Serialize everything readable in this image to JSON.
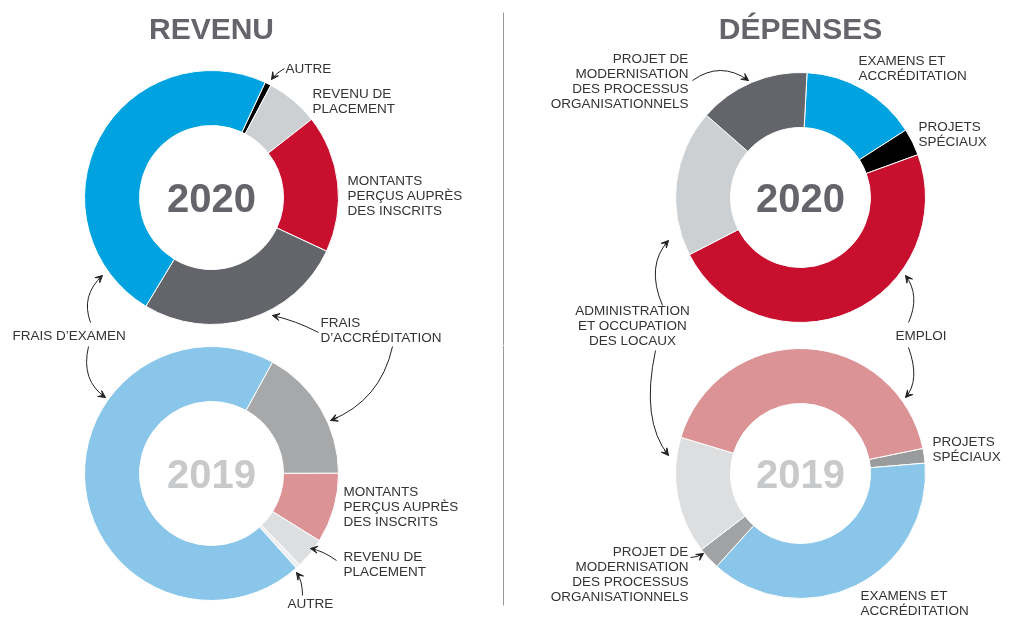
{
  "chart_data": [
    {
      "type": "donut",
      "title": "REVENU",
      "annotations": [
        "2020"
      ],
      "categories": [
        "AUTRE",
        "REVENU DE\nPLACEMENT",
        "MONTANTS\nPERÇUS AUPRÈS\nDES INSCRITS",
        "FRAIS\nD’ACCRÉDITATION",
        "FRAIS D’EXAMEN"
      ],
      "values": [
        0.8,
        6.7,
        17.5,
        26.7,
        48.3
      ],
      "colors": [
        "#000000",
        "#cdd0d3",
        "#c8102e",
        "#63656a",
        "#00a3e0"
      ]
    },
    {
      "type": "donut",
      "title": "DÉPENSES",
      "annotations": [
        "2020"
      ],
      "categories": [
        "EXAMENS ET\nACCRÉDITATION",
        "PROJETS\nSPÉCIAUX",
        "EMPLOI",
        "ADMINISTRATION\nET OCCUPATION\nDES LOCAUX",
        "PROJET DE\nMODERNISATION\nDES PROCESSUS\nORGANISATIONNELS"
      ],
      "values": [
        15.1,
        3.5,
        48.0,
        19.0,
        14.4
      ],
      "colors": [
        "#00a3e0",
        "#000000",
        "#c8102e",
        "#cdd0d3",
        "#63656a"
      ]
    },
    {
      "type": "donut",
      "annotations": [
        "2019"
      ],
      "categories": [
        null,
        "MONTANTS\nPERÇUS AUPRÈS\nDES INSCRITS",
        "REVENU DE\nPLACEMENT",
        "AUTRE",
        null
      ],
      "values": [
        17.0,
        8.9,
        3.9,
        0.6,
        69.6
      ],
      "colors": [
        "#a7a8aa",
        "#dc9396",
        "#dcdedf",
        "#eeeff0",
        "#8ac6ea"
      ]
    },
    {
      "type": "donut",
      "annotations": [
        "2019"
      ],
      "categories": [
        "PROJETS\nSPÉCIAUX",
        "EXAMENS ET\nACCRÉDITATION",
        "PROJET DE\nMODERNISATION\nDES PROCESSUS\nORGANISATIONNELS",
        null,
        null
      ],
      "values": [
        1.9,
        38.0,
        2.9,
        15.1,
        42.1
      ],
      "colors": [
        "#9a9b9d",
        "#8ac6ea",
        "#a0a2a4",
        "#dcdedf",
        "#dc9396"
      ]
    }
  ]
}
